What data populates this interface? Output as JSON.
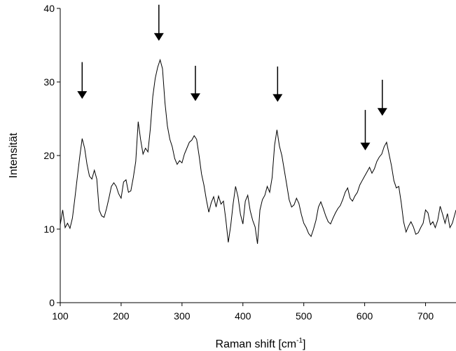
{
  "chart_data": {
    "type": "line",
    "title": "",
    "xlabel": "Raman shift [cm",
    "xlabel_sup": "-1",
    "xlabel_suffix": "]",
    "ylabel": "Intensität",
    "xlim": [
      100,
      750
    ],
    "ylim": [
      0,
      40
    ],
    "xticks": [
      100,
      200,
      300,
      400,
      500,
      600,
      700
    ],
    "yticks": [
      0,
      10,
      20,
      30,
      40
    ],
    "grid": false,
    "series": [
      {
        "color": "#000000",
        "points": [
          [
            100,
            10.6
          ],
          [
            104,
            12.6
          ],
          [
            108,
            10.2
          ],
          [
            112,
            10.8
          ],
          [
            116,
            10.1
          ],
          [
            120,
            11.5
          ],
          [
            124,
            14.2
          ],
          [
            128,
            17.0
          ],
          [
            132,
            19.8
          ],
          [
            136,
            22.3
          ],
          [
            140,
            21.0
          ],
          [
            144,
            18.8
          ],
          [
            148,
            17.2
          ],
          [
            152,
            16.8
          ],
          [
            156,
            18.0
          ],
          [
            160,
            16.8
          ],
          [
            164,
            12.6
          ],
          [
            168,
            11.8
          ],
          [
            172,
            11.6
          ],
          [
            176,
            12.8
          ],
          [
            180,
            14.2
          ],
          [
            184,
            15.8
          ],
          [
            188,
            16.3
          ],
          [
            192,
            15.8
          ],
          [
            196,
            14.8
          ],
          [
            200,
            14.2
          ],
          [
            204,
            16.4
          ],
          [
            208,
            16.7
          ],
          [
            212,
            15.0
          ],
          [
            216,
            15.2
          ],
          [
            220,
            17.0
          ],
          [
            224,
            19.2
          ],
          [
            228,
            24.6
          ],
          [
            232,
            22.2
          ],
          [
            236,
            20.2
          ],
          [
            240,
            21.0
          ],
          [
            244,
            20.5
          ],
          [
            248,
            23.6
          ],
          [
            252,
            28.0
          ],
          [
            256,
            30.5
          ],
          [
            260,
            32.0
          ],
          [
            264,
            33.0
          ],
          [
            268,
            31.8
          ],
          [
            272,
            27.2
          ],
          [
            276,
            24.0
          ],
          [
            280,
            22.2
          ],
          [
            284,
            21.2
          ],
          [
            288,
            19.6
          ],
          [
            292,
            18.8
          ],
          [
            296,
            19.3
          ],
          [
            300,
            19.0
          ],
          [
            304,
            20.2
          ],
          [
            308,
            21.0
          ],
          [
            312,
            21.8
          ],
          [
            316,
            22.1
          ],
          [
            320,
            22.7
          ],
          [
            324,
            22.2
          ],
          [
            328,
            20.0
          ],
          [
            332,
            17.5
          ],
          [
            336,
            16.0
          ],
          [
            340,
            14.0
          ],
          [
            344,
            12.3
          ],
          [
            348,
            13.6
          ],
          [
            352,
            14.4
          ],
          [
            356,
            13.0
          ],
          [
            360,
            14.5
          ],
          [
            364,
            13.4
          ],
          [
            368,
            13.8
          ],
          [
            372,
            11.3
          ],
          [
            376,
            8.2
          ],
          [
            380,
            10.5
          ],
          [
            384,
            13.5
          ],
          [
            388,
            15.8
          ],
          [
            392,
            14.4
          ],
          [
            396,
            12.0
          ],
          [
            400,
            10.7
          ],
          [
            404,
            13.8
          ],
          [
            408,
            14.6
          ],
          [
            412,
            12.5
          ],
          [
            416,
            11.2
          ],
          [
            420,
            10.3
          ],
          [
            424,
            8.0
          ],
          [
            428,
            12.6
          ],
          [
            432,
            14.0
          ],
          [
            436,
            14.6
          ],
          [
            440,
            15.8
          ],
          [
            444,
            15.0
          ],
          [
            448,
            17.0
          ],
          [
            452,
            21.4
          ],
          [
            456,
            23.5
          ],
          [
            460,
            21.3
          ],
          [
            464,
            20.0
          ],
          [
            468,
            18.0
          ],
          [
            472,
            16.0
          ],
          [
            476,
            14.0
          ],
          [
            480,
            13.0
          ],
          [
            484,
            13.3
          ],
          [
            488,
            14.2
          ],
          [
            492,
            13.5
          ],
          [
            496,
            12.0
          ],
          [
            500,
            10.8
          ],
          [
            504,
            10.2
          ],
          [
            508,
            9.4
          ],
          [
            512,
            9.0
          ],
          [
            516,
            10.0
          ],
          [
            520,
            11.2
          ],
          [
            524,
            13.0
          ],
          [
            528,
            13.7
          ],
          [
            532,
            12.8
          ],
          [
            536,
            11.8
          ],
          [
            540,
            11.0
          ],
          [
            544,
            10.7
          ],
          [
            548,
            11.5
          ],
          [
            552,
            12.2
          ],
          [
            556,
            12.8
          ],
          [
            560,
            13.2
          ],
          [
            564,
            14.0
          ],
          [
            568,
            15.0
          ],
          [
            572,
            15.6
          ],
          [
            576,
            14.2
          ],
          [
            580,
            13.8
          ],
          [
            584,
            14.5
          ],
          [
            588,
            15.0
          ],
          [
            592,
            16.0
          ],
          [
            596,
            16.6
          ],
          [
            600,
            17.2
          ],
          [
            604,
            17.8
          ],
          [
            608,
            18.4
          ],
          [
            612,
            17.6
          ],
          [
            616,
            18.2
          ],
          [
            620,
            19.2
          ],
          [
            624,
            19.8
          ],
          [
            628,
            20.2
          ],
          [
            632,
            21.2
          ],
          [
            636,
            21.8
          ],
          [
            640,
            20.2
          ],
          [
            644,
            18.6
          ],
          [
            648,
            16.6
          ],
          [
            652,
            15.6
          ],
          [
            656,
            15.8
          ],
          [
            660,
            13.6
          ],
          [
            664,
            11.0
          ],
          [
            668,
            9.6
          ],
          [
            672,
            10.4
          ],
          [
            676,
            11.0
          ],
          [
            680,
            10.3
          ],
          [
            684,
            9.3
          ],
          [
            688,
            9.5
          ],
          [
            692,
            10.2
          ],
          [
            696,
            10.8
          ],
          [
            700,
            12.6
          ],
          [
            704,
            12.2
          ],
          [
            708,
            10.6
          ],
          [
            712,
            11.0
          ],
          [
            716,
            10.2
          ],
          [
            720,
            11.2
          ],
          [
            724,
            13.1
          ],
          [
            728,
            12.0
          ],
          [
            732,
            10.8
          ],
          [
            736,
            12.1
          ],
          [
            740,
            10.2
          ],
          [
            744,
            10.8
          ],
          [
            750,
            12.6
          ]
        ]
      }
    ],
    "annotations": [
      {
        "type": "arrow-down",
        "x": 136,
        "y_tail": 32.7,
        "y_head": 27.7
      },
      {
        "type": "arrow-down",
        "x": 262,
        "y_tail": 40.5,
        "y_head": 35.6
      },
      {
        "type": "arrow-down",
        "x": 322,
        "y_tail": 32.2,
        "y_head": 27.4
      },
      {
        "type": "arrow-down",
        "x": 457,
        "y_tail": 32.1,
        "y_head": 27.3
      },
      {
        "type": "arrow-down",
        "x": 601,
        "y_tail": 26.2,
        "y_head": 20.7
      },
      {
        "type": "arrow-down",
        "x": 629,
        "y_tail": 30.3,
        "y_head": 25.4
      }
    ]
  }
}
